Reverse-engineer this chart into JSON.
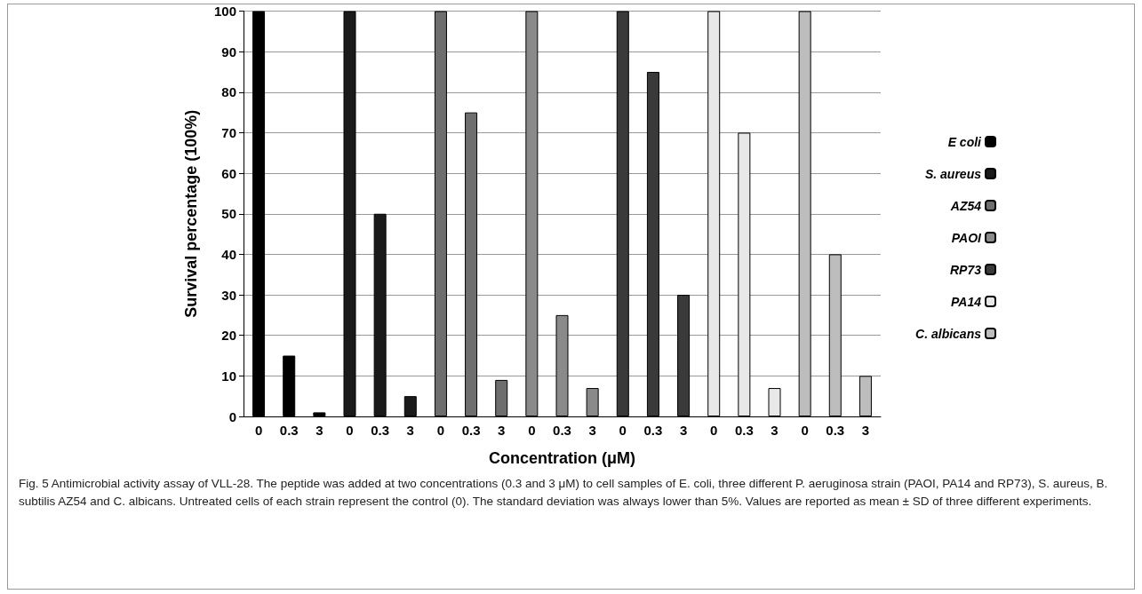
{
  "chart_data": {
    "type": "bar",
    "xlabel": "Concentration (μM)",
    "ylabel": "Survival percentage (100%)",
    "categories": [
      "0",
      "0.3",
      "3",
      "0",
      "0.3",
      "3",
      "0",
      "0.3",
      "3",
      "0",
      "0.3",
      "3",
      "0",
      "0.3",
      "3",
      "0",
      "0.3",
      "3",
      "0",
      "0.3",
      "3"
    ],
    "series": [
      {
        "name": "E coli",
        "color": "#000000",
        "values": [
          100,
          15,
          1,
          null,
          null,
          null,
          null,
          null,
          null,
          null,
          null,
          null,
          null,
          null,
          null,
          null,
          null,
          null,
          null,
          null,
          null
        ]
      },
      {
        "name": "S. aureus",
        "color": "#1a1a1a",
        "values": [
          null,
          null,
          null,
          100,
          50,
          5,
          null,
          null,
          null,
          null,
          null,
          null,
          null,
          null,
          null,
          null,
          null,
          null,
          null,
          null,
          null
        ]
      },
      {
        "name": "AZ54",
        "color": "#6e6e6e",
        "values": [
          null,
          null,
          null,
          null,
          null,
          null,
          100,
          75,
          9,
          null,
          null,
          null,
          null,
          null,
          null,
          null,
          null,
          null,
          null,
          null,
          null
        ]
      },
      {
        "name": "PAOI",
        "color": "#8a8a8a",
        "values": [
          null,
          null,
          null,
          null,
          null,
          null,
          null,
          null,
          null,
          100,
          25,
          7,
          null,
          null,
          null,
          null,
          null,
          null,
          null,
          null,
          null
        ]
      },
      {
        "name": "RP73",
        "color": "#3a3a3a",
        "values": [
          null,
          null,
          null,
          null,
          null,
          null,
          null,
          null,
          null,
          null,
          null,
          null,
          100,
          85,
          30,
          null,
          null,
          null,
          null,
          null,
          null
        ]
      },
      {
        "name": "PA14",
        "color": "#e8e8e8",
        "values": [
          null,
          null,
          null,
          null,
          null,
          null,
          null,
          null,
          null,
          null,
          null,
          null,
          null,
          null,
          null,
          100,
          70,
          7,
          null,
          null,
          null
        ]
      },
      {
        "name": "C. albicans",
        "color": "#bdbdbd",
        "values": [
          null,
          null,
          null,
          null,
          null,
          null,
          null,
          null,
          null,
          null,
          null,
          null,
          null,
          null,
          null,
          null,
          null,
          null,
          100,
          40,
          10
        ]
      }
    ],
    "ylim": [
      0,
      100
    ],
    "yticks": [
      0,
      10,
      20,
      30,
      40,
      50,
      60,
      70,
      80,
      90,
      100
    ],
    "grid": "y",
    "legend": "right",
    "annotations": [
      "Fig. 5 Antimicrobial activity assay of VLL-28. The peptide was added at two concentrations (0.3 and 3 μM) to cell samples of E. coli, three different P. aeruginosa strain (PAOI, PA14 and RP73), S. aureus, B. subtilis AZ54 and C. albicans. Untreated cells of each strain represent the control (0). The standard deviation was always lower than 5%. Values are reported as mean ± SD of three different experiments."
    ]
  }
}
